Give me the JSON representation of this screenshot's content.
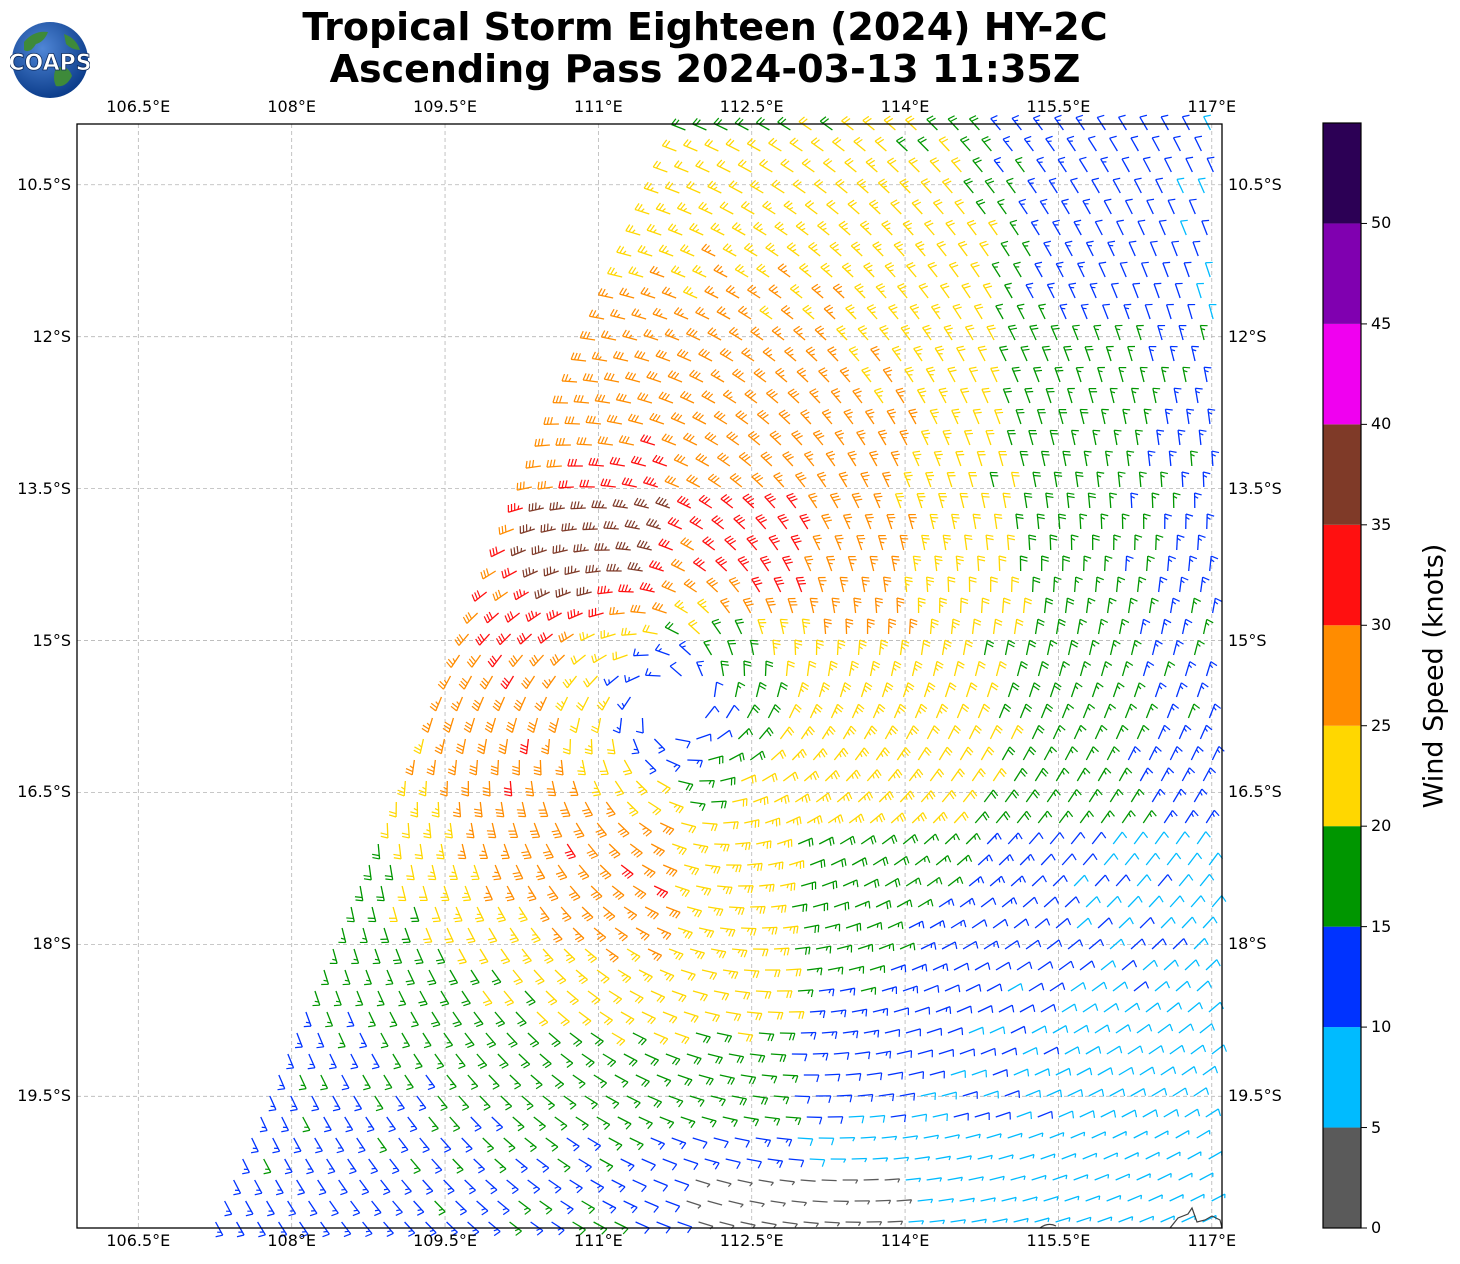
{
  "title_line1": "Tropical Storm Eighteen (2024) HY-2C",
  "title_line2": "Ascending Pass 2024-03-13 11:35Z",
  "logo_text": "COAPS",
  "lon_ticks": [
    "106.5°E",
    "108°E",
    "109.5°E",
    "111°E",
    "112.5°E",
    "114°E",
    "115.5°E",
    "117°E"
  ],
  "lat_ticks": [
    "10.5°S",
    "12°S",
    "13.5°S",
    "15°S",
    "16.5°S",
    "18°S",
    "19.5°S"
  ],
  "colorbar": {
    "title": "Wind Speed (knots)",
    "tick_labels": [
      "0",
      "5",
      "10",
      "15",
      "20",
      "25",
      "30",
      "35",
      "40",
      "45",
      "50"
    ],
    "bins": [
      {
        "min": 0,
        "max": 5,
        "color": "#5a5a5a"
      },
      {
        "min": 5,
        "max": 10,
        "color": "#00bbff"
      },
      {
        "min": 10,
        "max": 15,
        "color": "#0033ff"
      },
      {
        "min": 15,
        "max": 20,
        "color": "#009600"
      },
      {
        "min": 20,
        "max": 25,
        "color": "#ffd700"
      },
      {
        "min": 25,
        "max": 30,
        "color": "#ff8c00"
      },
      {
        "min": 30,
        "max": 35,
        "color": "#ff1010"
      },
      {
        "min": 35,
        "max": 40,
        "color": "#7f3a28"
      },
      {
        "min": 40,
        "max": 45,
        "color": "#f000f0"
      },
      {
        "min": 45,
        "max": 50,
        "color": "#8000b0"
      },
      {
        "min": 50,
        "max": 55,
        "color": "#2c0055"
      }
    ]
  },
  "map": {
    "lon_range": [
      105.9,
      117.1
    ],
    "lat_range": [
      -20.8,
      -9.9
    ],
    "grid": true,
    "storm_center": {
      "lon": 111.7,
      "lat": -15.65
    }
  }
}
